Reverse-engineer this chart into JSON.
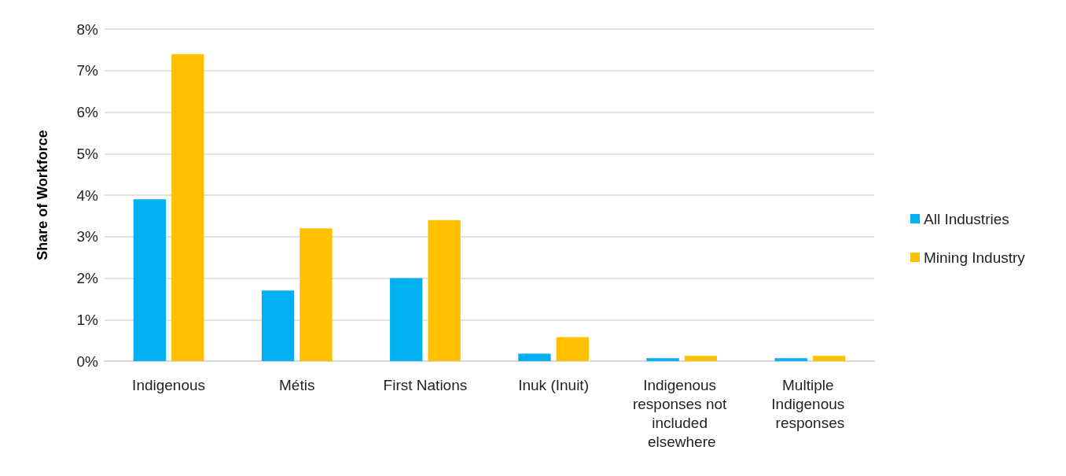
{
  "chart_data": {
    "type": "bar",
    "ylabel": "Share of Workforce",
    "categories": [
      "Indigenous",
      "Métis",
      "First Nations",
      "Inuk (Inuit)",
      "Indigenous responses not included elsewhere",
      "Multiple Indigenous responses"
    ],
    "series": [
      {
        "name": "All Industries",
        "color": "#00b0f0",
        "values": [
          3.9,
          1.7,
          2.0,
          0.18,
          0.07,
          0.07
        ]
      },
      {
        "name": "Mining Industry",
        "color": "#ffc000",
        "values": [
          7.4,
          3.2,
          3.4,
          0.58,
          0.13,
          0.13
        ]
      }
    ],
    "ylim": [
      0,
      8
    ],
    "yticks": [
      {
        "value": 0,
        "label": "0%"
      },
      {
        "value": 1,
        "label": "1%"
      },
      {
        "value": 2,
        "label": "2%"
      },
      {
        "value": 3,
        "label": "3%"
      },
      {
        "value": 4,
        "label": "4%"
      },
      {
        "value": 5,
        "label": "5%"
      },
      {
        "value": 6,
        "label": "6%"
      },
      {
        "value": 7,
        "label": "7%"
      },
      {
        "value": 8,
        "label": "8%"
      }
    ],
    "grid": "y",
    "legend": "right"
  }
}
